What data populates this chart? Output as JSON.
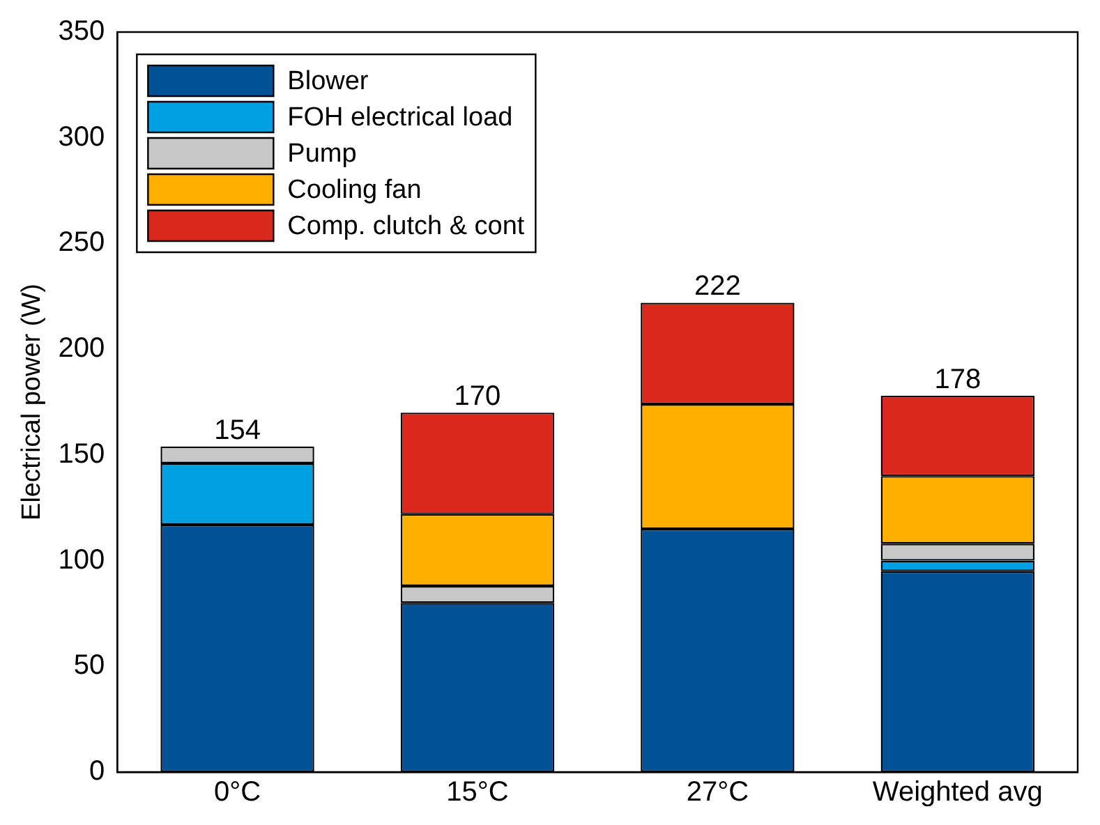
{
  "chart_data": {
    "type": "bar",
    "stacked": true,
    "ylabel": "Electrical power (W)",
    "categories": [
      "0°C",
      "15°C",
      "27°C",
      "Weighted avg"
    ],
    "series": [
      {
        "name": "Blower",
        "color": "#005195",
        "values": [
          117,
          80,
          115,
          95
        ]
      },
      {
        "name": "FOH electrical load",
        "color": "#00a0e3",
        "values": [
          29,
          0,
          0,
          5
        ]
      },
      {
        "name": "Pump",
        "color": "#c8c8c8",
        "values": [
          8,
          8,
          0,
          8
        ]
      },
      {
        "name": "Cooling fan",
        "color": "#ffaf00",
        "values": [
          0,
          34,
          59,
          32
        ]
      },
      {
        "name": "Comp. clutch & cont",
        "color": "#da291c",
        "values": [
          0,
          48,
          48,
          38
        ]
      }
    ],
    "totals": [
      "154",
      "170",
      "222",
      "178"
    ],
    "ylim": [
      0,
      350
    ],
    "yticks": [
      0,
      50,
      100,
      150,
      200,
      250,
      300,
      350
    ],
    "grid": false,
    "legend": "top left"
  }
}
